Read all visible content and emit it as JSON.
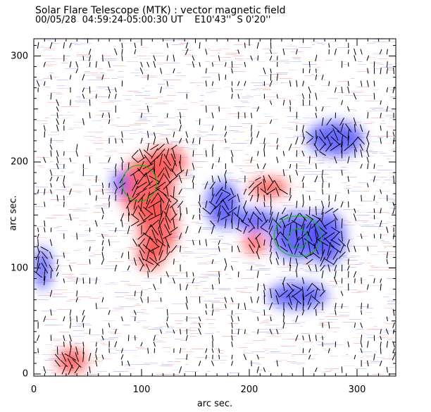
{
  "chart_data": {
    "type": "heatmap",
    "title": "Solar Flare Telescope (MTK) : vector magnetic field",
    "subtitle": "00/05/28  04:59:24-05:00:30 UT    E10'43''  S 0'20''",
    "xlabel": "arc sec.",
    "ylabel": "arc sec.",
    "xlim": [
      0,
      336
    ],
    "ylim": [
      0,
      316
    ],
    "xticks": [
      "0",
      "100",
      "200",
      "300"
    ],
    "yticks": [
      "0",
      "100",
      "200",
      "300"
    ],
    "xtick_values": [
      0,
      100,
      200,
      300
    ],
    "ytick_values": [
      0,
      100,
      200,
      300
    ],
    "colors": {
      "positive": "#ff5050",
      "negative": "#5050ff",
      "contour": "#00c000",
      "vectors": "#000000"
    },
    "polarity_regions": [
      {
        "sign": "positive",
        "x": 105,
        "y": 175,
        "rx": 25,
        "ry": 30
      },
      {
        "sign": "positive",
        "x": 122,
        "y": 200,
        "rx": 20,
        "ry": 14
      },
      {
        "sign": "positive",
        "x": 115,
        "y": 140,
        "rx": 18,
        "ry": 30
      },
      {
        "sign": "positive",
        "x": 108,
        "y": 112,
        "rx": 12,
        "ry": 14
      },
      {
        "sign": "positive",
        "x": 205,
        "y": 123,
        "rx": 10,
        "ry": 10
      },
      {
        "sign": "positive",
        "x": 218,
        "y": 176,
        "rx": 18,
        "ry": 9
      },
      {
        "sign": "positive",
        "x": 35,
        "y": 12,
        "rx": 14,
        "ry": 12
      },
      {
        "sign": "negative",
        "x": 245,
        "y": 130,
        "rx": 25,
        "ry": 22
      },
      {
        "sign": "negative",
        "x": 175,
        "y": 160,
        "rx": 15,
        "ry": 22
      },
      {
        "sign": "negative",
        "x": 205,
        "y": 145,
        "rx": 20,
        "ry": 10
      },
      {
        "sign": "negative",
        "x": 80,
        "y": 180,
        "rx": 7,
        "ry": 12
      },
      {
        "sign": "negative",
        "x": 272,
        "y": 128,
        "rx": 17,
        "ry": 25
      },
      {
        "sign": "negative",
        "x": 280,
        "y": 222,
        "rx": 26,
        "ry": 16
      },
      {
        "sign": "negative",
        "x": 8,
        "y": 100,
        "rx": 8,
        "ry": 20
      },
      {
        "sign": "negative",
        "x": 245,
        "y": 74,
        "rx": 28,
        "ry": 12
      }
    ],
    "contours": [
      {
        "x": 98,
        "y": 180,
        "rx": 16,
        "ry": 17
      },
      {
        "x": 245,
        "y": 130,
        "rx": 22,
        "ry": 19
      },
      {
        "x": 245,
        "y": 128,
        "rx": 9,
        "ry": 9
      }
    ]
  }
}
